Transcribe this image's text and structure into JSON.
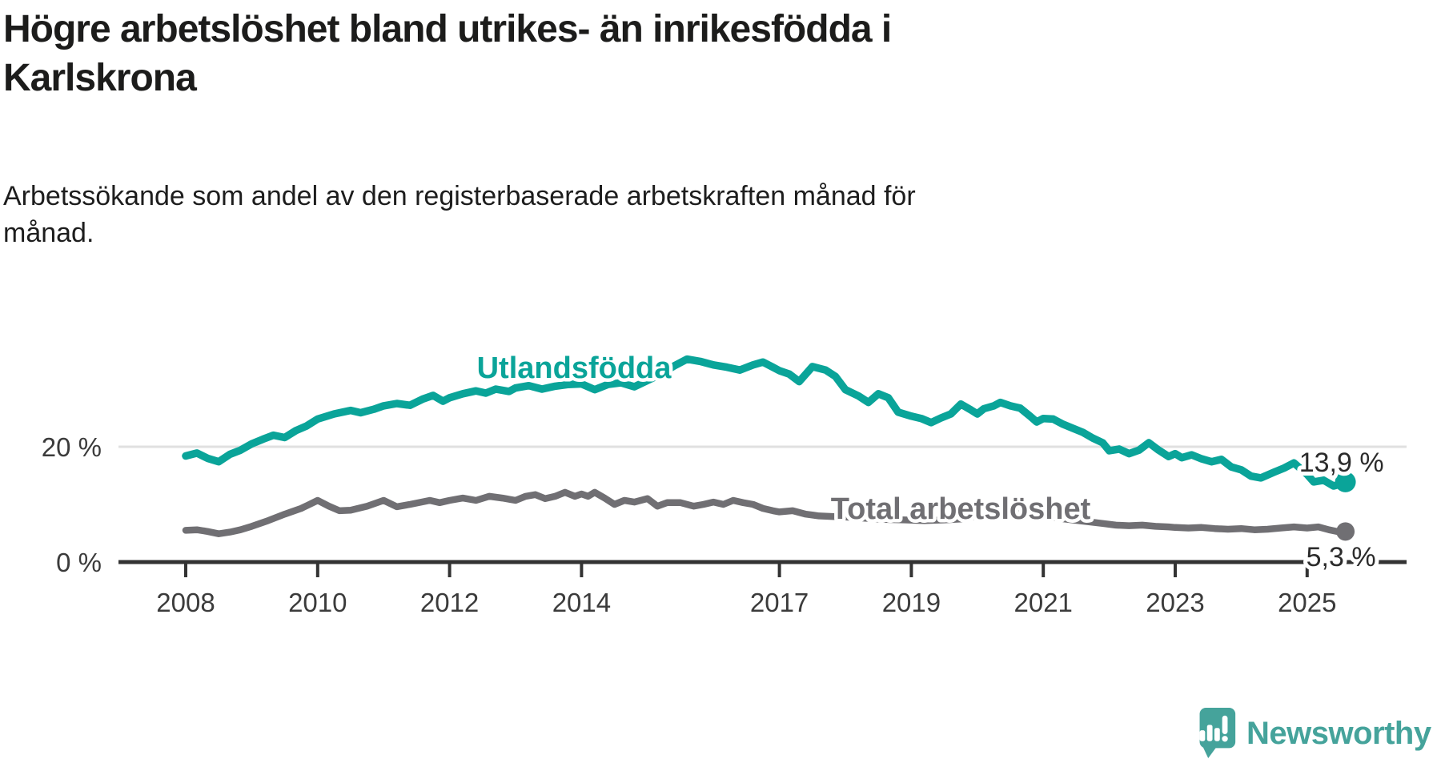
{
  "title_line1": "Högre arbetslöshet bland utrikes- än inrikesfödda i",
  "title_line2": "Karlskrona",
  "subtitle_line1": "Arbetssökande som andel av den registerbaserade arbetskraften månad för",
  "subtitle_line2": "månad.",
  "branding": {
    "name": "Newsworthy",
    "color": "#45a39b"
  },
  "chart_data": {
    "type": "line",
    "title": "Högre arbetslöshet bland utrikes- än inrikesfödda i Karlskrona",
    "subtitle": "Arbetssökande som andel av den registerbaserade arbetskraften månad för månad.",
    "unit": "%",
    "grid": "single horizontal gridline at 20 %",
    "legend_position": "labels drawn on lines",
    "x_axis": {
      "range_years": [
        2008.0,
        2025.58
      ],
      "tick_years": [
        2008,
        2010,
        2012,
        2014,
        2017,
        2019,
        2021,
        2023,
        2025
      ],
      "tick_labels": [
        "2008",
        "2010",
        "2012",
        "2014",
        "2017",
        "2019",
        "2021",
        "2023",
        "2025"
      ]
    },
    "y_axis": {
      "range": [
        0,
        37
      ],
      "ticks": [
        {
          "value": 0,
          "label": "0 %"
        },
        {
          "value": 20,
          "label": "20 %"
        }
      ]
    },
    "series": [
      {
        "name": "Utlandsfödda",
        "color": "#0aa499",
        "end_value": 13.9,
        "end_value_label": "13,9 %",
        "points": [
          [
            2008.0,
            18.4
          ],
          [
            2008.17,
            18.9
          ],
          [
            2008.33,
            18.0
          ],
          [
            2008.5,
            17.4
          ],
          [
            2008.67,
            18.7
          ],
          [
            2008.83,
            19.4
          ],
          [
            2009.0,
            20.5
          ],
          [
            2009.17,
            21.3
          ],
          [
            2009.33,
            22.0
          ],
          [
            2009.5,
            21.6
          ],
          [
            2009.67,
            22.8
          ],
          [
            2009.83,
            23.6
          ],
          [
            2010.0,
            24.8
          ],
          [
            2010.25,
            25.7
          ],
          [
            2010.5,
            26.3
          ],
          [
            2010.65,
            25.9
          ],
          [
            2010.85,
            26.5
          ],
          [
            2011.0,
            27.1
          ],
          [
            2011.2,
            27.5
          ],
          [
            2011.4,
            27.2
          ],
          [
            2011.6,
            28.3
          ],
          [
            2011.75,
            28.9
          ],
          [
            2011.9,
            27.9
          ],
          [
            2012.0,
            28.5
          ],
          [
            2012.2,
            29.2
          ],
          [
            2012.4,
            29.7
          ],
          [
            2012.55,
            29.3
          ],
          [
            2012.7,
            30.0
          ],
          [
            2012.9,
            29.6
          ],
          [
            2013.0,
            30.2
          ],
          [
            2013.2,
            30.6
          ],
          [
            2013.4,
            30.0
          ],
          [
            2013.6,
            30.5
          ],
          [
            2013.8,
            30.8
          ],
          [
            2014.0,
            30.9
          ],
          [
            2014.2,
            29.9
          ],
          [
            2014.4,
            30.8
          ],
          [
            2014.6,
            31.1
          ],
          [
            2014.8,
            30.4
          ],
          [
            2015.0,
            31.5
          ],
          [
            2015.2,
            32.6
          ],
          [
            2015.4,
            34.0
          ],
          [
            2015.6,
            35.2
          ],
          [
            2015.8,
            34.8
          ],
          [
            2016.0,
            34.2
          ],
          [
            2016.2,
            33.8
          ],
          [
            2016.4,
            33.3
          ],
          [
            2016.6,
            34.2
          ],
          [
            2016.75,
            34.7
          ],
          [
            2016.9,
            33.8
          ],
          [
            2017.0,
            33.2
          ],
          [
            2017.15,
            32.6
          ],
          [
            2017.3,
            31.3
          ],
          [
            2017.5,
            33.9
          ],
          [
            2017.7,
            33.3
          ],
          [
            2017.85,
            32.2
          ],
          [
            2018.0,
            29.9
          ],
          [
            2018.2,
            28.8
          ],
          [
            2018.35,
            27.7
          ],
          [
            2018.5,
            29.2
          ],
          [
            2018.65,
            28.5
          ],
          [
            2018.8,
            26.0
          ],
          [
            2019.0,
            25.3
          ],
          [
            2019.15,
            24.9
          ],
          [
            2019.3,
            24.2
          ],
          [
            2019.45,
            25.0
          ],
          [
            2019.6,
            25.7
          ],
          [
            2019.75,
            27.4
          ],
          [
            2019.9,
            26.4
          ],
          [
            2020.0,
            25.7
          ],
          [
            2020.1,
            26.6
          ],
          [
            2020.25,
            27.1
          ],
          [
            2020.35,
            27.7
          ],
          [
            2020.5,
            27.1
          ],
          [
            2020.65,
            26.7
          ],
          [
            2020.8,
            25.3
          ],
          [
            2020.9,
            24.3
          ],
          [
            2021.0,
            24.9
          ],
          [
            2021.15,
            24.8
          ],
          [
            2021.3,
            23.9
          ],
          [
            2021.45,
            23.2
          ],
          [
            2021.6,
            22.5
          ],
          [
            2021.75,
            21.5
          ],
          [
            2021.9,
            20.7
          ],
          [
            2022.0,
            19.3
          ],
          [
            2022.15,
            19.6
          ],
          [
            2022.3,
            18.8
          ],
          [
            2022.45,
            19.4
          ],
          [
            2022.6,
            20.7
          ],
          [
            2022.75,
            19.4
          ],
          [
            2022.9,
            18.3
          ],
          [
            2023.0,
            18.8
          ],
          [
            2023.1,
            18.1
          ],
          [
            2023.25,
            18.6
          ],
          [
            2023.4,
            17.9
          ],
          [
            2023.55,
            17.4
          ],
          [
            2023.7,
            17.8
          ],
          [
            2023.85,
            16.5
          ],
          [
            2024.0,
            16.0
          ],
          [
            2024.15,
            14.9
          ],
          [
            2024.3,
            14.6
          ],
          [
            2024.5,
            15.6
          ],
          [
            2024.65,
            16.3
          ],
          [
            2024.8,
            17.2
          ],
          [
            2025.0,
            15.2
          ],
          [
            2025.1,
            13.9
          ],
          [
            2025.25,
            14.2
          ],
          [
            2025.4,
            13.2
          ],
          [
            2025.5,
            13.5
          ],
          [
            2025.58,
            13.9
          ]
        ]
      },
      {
        "name": "Total arbetslöshet",
        "color": "#706f73",
        "end_value": 5.3,
        "end_value_label": "5,3 %",
        "points": [
          [
            2008.0,
            5.5
          ],
          [
            2008.17,
            5.6
          ],
          [
            2008.33,
            5.3
          ],
          [
            2008.5,
            4.9
          ],
          [
            2008.67,
            5.2
          ],
          [
            2008.83,
            5.6
          ],
          [
            2009.0,
            6.2
          ],
          [
            2009.25,
            7.2
          ],
          [
            2009.5,
            8.3
          ],
          [
            2009.75,
            9.3
          ],
          [
            2010.0,
            10.7
          ],
          [
            2010.17,
            9.7
          ],
          [
            2010.33,
            8.9
          ],
          [
            2010.5,
            9.0
          ],
          [
            2010.75,
            9.7
          ],
          [
            2011.0,
            10.7
          ],
          [
            2011.2,
            9.6
          ],
          [
            2011.4,
            10.0
          ],
          [
            2011.7,
            10.7
          ],
          [
            2011.85,
            10.3
          ],
          [
            2012.0,
            10.7
          ],
          [
            2012.2,
            11.1
          ],
          [
            2012.4,
            10.7
          ],
          [
            2012.6,
            11.4
          ],
          [
            2012.8,
            11.1
          ],
          [
            2013.0,
            10.7
          ],
          [
            2013.15,
            11.4
          ],
          [
            2013.3,
            11.7
          ],
          [
            2013.45,
            11.0
          ],
          [
            2013.6,
            11.4
          ],
          [
            2013.75,
            12.1
          ],
          [
            2013.9,
            11.4
          ],
          [
            2014.0,
            11.8
          ],
          [
            2014.1,
            11.4
          ],
          [
            2014.2,
            12.1
          ],
          [
            2014.35,
            11.1
          ],
          [
            2014.5,
            10.0
          ],
          [
            2014.65,
            10.7
          ],
          [
            2014.8,
            10.4
          ],
          [
            2015.0,
            11.0
          ],
          [
            2015.15,
            9.7
          ],
          [
            2015.3,
            10.3
          ],
          [
            2015.5,
            10.3
          ],
          [
            2015.7,
            9.7
          ],
          [
            2015.85,
            10.0
          ],
          [
            2016.0,
            10.4
          ],
          [
            2016.15,
            10.0
          ],
          [
            2016.3,
            10.7
          ],
          [
            2016.45,
            10.3
          ],
          [
            2016.6,
            10.0
          ],
          [
            2016.75,
            9.3
          ],
          [
            2016.9,
            8.9
          ],
          [
            2017.0,
            8.7
          ],
          [
            2017.2,
            8.9
          ],
          [
            2017.4,
            8.3
          ],
          [
            2017.6,
            8.0
          ],
          [
            2017.8,
            7.9
          ],
          [
            2018.0,
            7.8
          ],
          [
            2018.3,
            7.6
          ],
          [
            2018.6,
            7.4
          ],
          [
            2018.9,
            7.3
          ],
          [
            2019.2,
            7.2
          ],
          [
            2019.5,
            7.3
          ],
          [
            2019.8,
            7.5
          ],
          [
            2020.1,
            8.3
          ],
          [
            2020.4,
            8.6
          ],
          [
            2020.7,
            8.4
          ],
          [
            2021.0,
            8.0
          ],
          [
            2021.3,
            7.5
          ],
          [
            2021.6,
            7.1
          ],
          [
            2021.9,
            6.7
          ],
          [
            2022.1,
            6.4
          ],
          [
            2022.3,
            6.3
          ],
          [
            2022.5,
            6.4
          ],
          [
            2022.7,
            6.2
          ],
          [
            2022.9,
            6.1
          ],
          [
            2023.0,
            6.0
          ],
          [
            2023.2,
            5.9
          ],
          [
            2023.4,
            6.0
          ],
          [
            2023.6,
            5.8
          ],
          [
            2023.8,
            5.7
          ],
          [
            2024.0,
            5.8
          ],
          [
            2024.2,
            5.6
          ],
          [
            2024.4,
            5.7
          ],
          [
            2024.6,
            5.9
          ],
          [
            2024.8,
            6.1
          ],
          [
            2025.0,
            5.9
          ],
          [
            2025.17,
            6.1
          ],
          [
            2025.33,
            5.6
          ],
          [
            2025.5,
            5.2
          ],
          [
            2025.58,
            5.3
          ]
        ]
      }
    ]
  }
}
